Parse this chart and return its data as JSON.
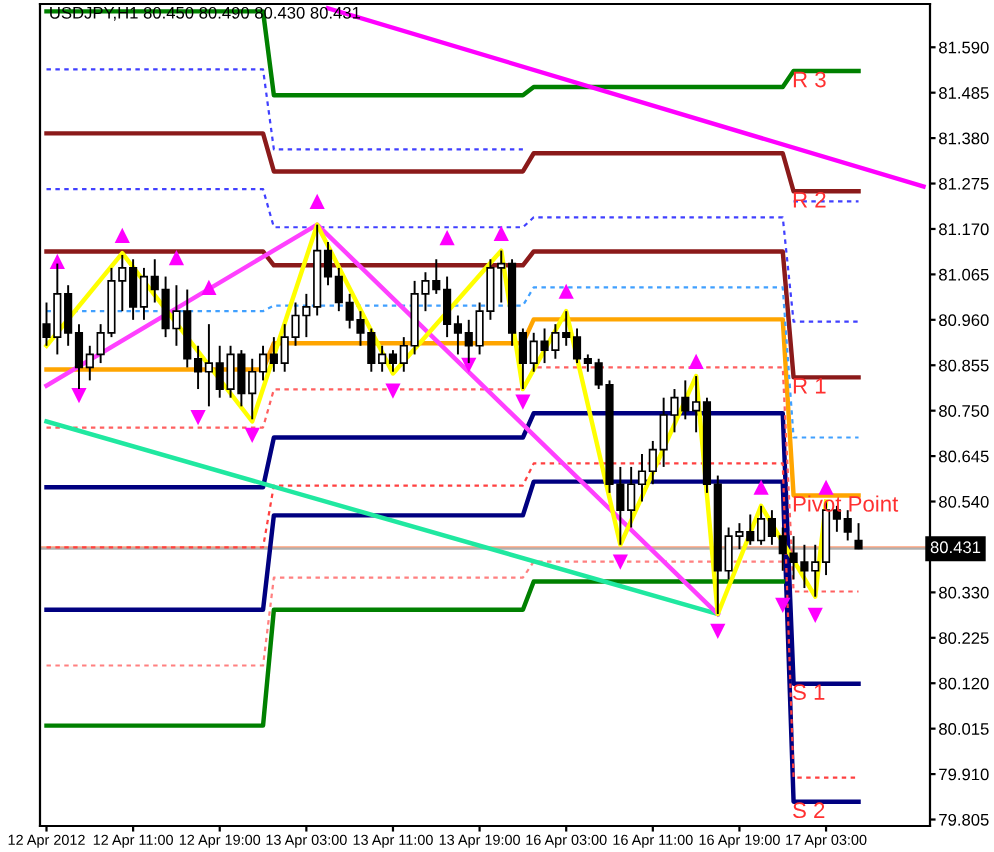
{
  "chart_data": {
    "type": "candlestick",
    "title": "USDJPY,H1 80.450 80.490 80.430 80.431",
    "categories": [
      "12 Apr 2012",
      null,
      null,
      null,
      null,
      null,
      null,
      null,
      "12 Apr 11:00",
      null,
      null,
      null,
      null,
      null,
      null,
      null,
      "12 Apr 19:00",
      null,
      null,
      null,
      null,
      null,
      null,
      null,
      "13 Apr 03:00",
      null,
      null,
      null,
      null,
      null,
      null,
      null,
      "13 Apr 11:00",
      null,
      null,
      null,
      null,
      null,
      null,
      null,
      "13 Apr 19:00",
      null,
      null,
      null,
      null,
      null,
      null,
      null,
      "16 Apr 03:00",
      null,
      null,
      null,
      null,
      null,
      null,
      null,
      "16 Apr 11:00",
      null,
      null,
      null,
      null,
      null,
      null,
      null,
      "16 Apr 19:00",
      null,
      null,
      null,
      null,
      null,
      null,
      null,
      "17 Apr 03:00",
      null,
      null,
      null,
      null,
      null,
      null,
      null,
      null,
      null
    ],
    "ohlc": [
      [
        80.95,
        81.0,
        80.9,
        80.92
      ],
      [
        80.92,
        81.09,
        80.88,
        81.02
      ],
      [
        81.02,
        81.04,
        80.9,
        80.93
      ],
      [
        80.93,
        80.95,
        80.8,
        80.85
      ],
      [
        80.85,
        80.9,
        80.82,
        80.88
      ],
      [
        80.88,
        80.95,
        80.86,
        80.93
      ],
      [
        80.93,
        81.08,
        80.92,
        81.05
      ],
      [
        81.05,
        81.11,
        80.98,
        81.08
      ],
      [
        81.08,
        81.1,
        80.96,
        80.99
      ],
      [
        80.99,
        81.08,
        80.96,
        81.06
      ],
      [
        81.06,
        81.1,
        81.0,
        81.03
      ],
      [
        81.03,
        81.06,
        80.92,
        80.94
      ],
      [
        80.94,
        81.04,
        80.9,
        80.98
      ],
      [
        80.98,
        81.03,
        80.85,
        80.87
      ],
      [
        80.87,
        80.9,
        80.8,
        80.84
      ],
      [
        80.84,
        80.95,
        80.76,
        80.86
      ],
      [
        80.86,
        80.9,
        80.78,
        80.8
      ],
      [
        80.8,
        80.9,
        80.78,
        80.88
      ],
      [
        80.88,
        80.89,
        80.76,
        80.79
      ],
      [
        80.79,
        80.87,
        80.73,
        80.84
      ],
      [
        80.84,
        80.9,
        80.82,
        80.88
      ],
      [
        80.88,
        80.92,
        80.84,
        80.86
      ],
      [
        80.86,
        80.95,
        80.84,
        80.92
      ],
      [
        80.92,
        81.0,
        80.9,
        80.97
      ],
      [
        80.97,
        81.02,
        80.92,
        80.99
      ],
      [
        80.99,
        81.18,
        80.97,
        81.12
      ],
      [
        81.12,
        81.14,
        81.04,
        81.06
      ],
      [
        81.06,
        81.08,
        80.98,
        81.0
      ],
      [
        81.0,
        81.02,
        80.94,
        80.96
      ],
      [
        80.96,
        80.98,
        80.9,
        80.93
      ],
      [
        80.93,
        80.94,
        80.84,
        80.86
      ],
      [
        80.86,
        80.9,
        80.84,
        80.88
      ],
      [
        80.88,
        80.89,
        80.84,
        80.86
      ],
      [
        80.86,
        80.92,
        80.84,
        80.9
      ],
      [
        80.9,
        81.05,
        80.88,
        81.02
      ],
      [
        81.02,
        81.07,
        80.98,
        81.05
      ],
      [
        81.05,
        81.1,
        81.02,
        81.03
      ],
      [
        81.03,
        81.06,
        80.92,
        80.95
      ],
      [
        80.95,
        80.97,
        80.88,
        80.93
      ],
      [
        80.93,
        80.96,
        80.86,
        80.9
      ],
      [
        80.9,
        81.0,
        80.88,
        80.98
      ],
      [
        80.98,
        81.1,
        80.96,
        81.08
      ],
      [
        81.08,
        81.12,
        81.0,
        81.09
      ],
      [
        81.09,
        81.1,
        80.9,
        80.93
      ],
      [
        80.93,
        80.94,
        80.8,
        80.86
      ],
      [
        80.86,
        80.93,
        80.84,
        80.91
      ],
      [
        80.91,
        80.94,
        80.86,
        80.89
      ],
      [
        80.89,
        80.95,
        80.87,
        80.93
      ],
      [
        80.93,
        80.98,
        80.9,
        80.92
      ],
      [
        80.92,
        80.94,
        80.86,
        80.87
      ],
      [
        80.87,
        80.88,
        80.84,
        80.86
      ],
      [
        80.86,
        80.87,
        80.8,
        80.81
      ],
      [
        80.81,
        80.82,
        80.56,
        80.58
      ],
      [
        80.58,
        80.62,
        80.44,
        80.52
      ],
      [
        80.52,
        80.62,
        80.48,
        80.58
      ],
      [
        80.58,
        80.65,
        80.54,
        80.61
      ],
      [
        80.61,
        80.68,
        80.58,
        80.66
      ],
      [
        80.66,
        80.78,
        80.62,
        80.74
      ],
      [
        80.74,
        80.8,
        80.7,
        80.78
      ],
      [
        80.78,
        80.82,
        80.73,
        80.75
      ],
      [
        80.75,
        80.83,
        80.7,
        80.77
      ],
      [
        80.77,
        80.78,
        80.56,
        80.58
      ],
      [
        80.58,
        80.6,
        80.28,
        80.38
      ],
      [
        80.38,
        80.48,
        80.36,
        80.46
      ],
      [
        80.46,
        80.49,
        80.43,
        80.47
      ],
      [
        80.47,
        80.51,
        80.44,
        80.45
      ],
      [
        80.45,
        80.53,
        80.44,
        80.5
      ],
      [
        80.5,
        80.52,
        80.44,
        80.46
      ],
      [
        80.46,
        80.48,
        80.38,
        80.42
      ],
      [
        80.42,
        80.46,
        80.36,
        80.4
      ],
      [
        80.4,
        80.44,
        80.34,
        80.38
      ],
      [
        80.38,
        80.44,
        80.32,
        80.4
      ],
      [
        80.4,
        80.54,
        80.37,
        80.52
      ],
      [
        80.52,
        80.53,
        80.47,
        80.5
      ],
      [
        80.5,
        80.52,
        80.45,
        80.47
      ],
      [
        80.45,
        80.49,
        80.43,
        80.431
      ],
      null,
      null,
      null,
      null,
      null,
      null
    ],
    "series": [
      {
        "type": "line",
        "color": "#008000",
        "line_style": "solid",
        "values": [
          81.673,
          null,
          null,
          null,
          null,
          null,
          null,
          null,
          null,
          null,
          null,
          null,
          null,
          null,
          null,
          null,
          null,
          null,
          null,
          null,
          81.673,
          81.479,
          null,
          null,
          null,
          null,
          null,
          null,
          null,
          null,
          null,
          null,
          null,
          null,
          null,
          null,
          null,
          null,
          null,
          null,
          null,
          null,
          null,
          null,
          81.479,
          81.498,
          null,
          null,
          null,
          null,
          null,
          null,
          null,
          null,
          null,
          null,
          null,
          null,
          null,
          null,
          null,
          null,
          null,
          null,
          null,
          null,
          null,
          null,
          81.498,
          81.535,
          null,
          null,
          null,
          null,
          null,
          81.535,
          null,
          null,
          null,
          null,
          null,
          null
        ]
      },
      {
        "type": "line",
        "color": "#8b1a1a",
        "line_style": "solid",
        "values": [
          81.391,
          null,
          null,
          null,
          null,
          null,
          null,
          null,
          null,
          null,
          null,
          null,
          null,
          null,
          null,
          null,
          null,
          null,
          null,
          null,
          81.391,
          81.303,
          null,
          null,
          null,
          null,
          null,
          null,
          null,
          null,
          null,
          null,
          null,
          null,
          null,
          null,
          null,
          null,
          null,
          null,
          null,
          null,
          null,
          null,
          81.303,
          81.345,
          null,
          null,
          null,
          null,
          null,
          null,
          null,
          null,
          null,
          null,
          null,
          null,
          null,
          null,
          null,
          null,
          null,
          null,
          null,
          null,
          null,
          null,
          81.345,
          81.257,
          null,
          null,
          null,
          null,
          null,
          81.257,
          null,
          null,
          null,
          null,
          null,
          null
        ]
      },
      {
        "type": "line",
        "color": "#8b1a1a",
        "line_style": "solid",
        "values": [
          81.118,
          null,
          null,
          null,
          null,
          null,
          null,
          null,
          null,
          null,
          null,
          null,
          null,
          null,
          null,
          null,
          null,
          null,
          null,
          null,
          81.118,
          81.086,
          null,
          null,
          null,
          null,
          null,
          null,
          null,
          null,
          null,
          null,
          null,
          null,
          null,
          null,
          null,
          null,
          null,
          null,
          null,
          null,
          null,
          null,
          81.086,
          81.118,
          null,
          null,
          null,
          null,
          null,
          null,
          null,
          null,
          null,
          null,
          null,
          null,
          null,
          null,
          null,
          null,
          null,
          null,
          null,
          null,
          null,
          null,
          81.118,
          80.827,
          null,
          null,
          null,
          null,
          null,
          80.827,
          null,
          null,
          null,
          null,
          null,
          null
        ]
      },
      {
        "type": "line",
        "color": "#ffa500",
        "line_style": "solid",
        "values": [
          80.845,
          null,
          null,
          null,
          null,
          null,
          null,
          null,
          null,
          null,
          null,
          null,
          null,
          null,
          null,
          null,
          null,
          null,
          null,
          null,
          80.845,
          80.906,
          null,
          null,
          null,
          null,
          null,
          null,
          null,
          null,
          null,
          null,
          null,
          null,
          null,
          null,
          null,
          null,
          null,
          null,
          null,
          null,
          null,
          null,
          80.906,
          80.961,
          null,
          null,
          null,
          null,
          null,
          null,
          null,
          null,
          null,
          null,
          null,
          null,
          null,
          null,
          null,
          null,
          null,
          null,
          null,
          null,
          null,
          null,
          80.961,
          80.554,
          null,
          null,
          null,
          null,
          null,
          80.554,
          null,
          null,
          null,
          null,
          null,
          null
        ]
      },
      {
        "type": "line",
        "color": "#000080",
        "line_style": "solid",
        "values": [
          80.573,
          null,
          null,
          null,
          null,
          null,
          null,
          null,
          null,
          null,
          null,
          null,
          null,
          null,
          null,
          null,
          null,
          null,
          null,
          null,
          80.573,
          80.688,
          null,
          null,
          null,
          null,
          null,
          null,
          null,
          null,
          null,
          null,
          null,
          null,
          null,
          null,
          null,
          null,
          null,
          null,
          null,
          null,
          null,
          null,
          80.688,
          80.744,
          null,
          null,
          null,
          null,
          null,
          null,
          null,
          null,
          null,
          null,
          null,
          null,
          null,
          null,
          null,
          null,
          null,
          null,
          null,
          null,
          null,
          null,
          80.744,
          80.119,
          null,
          null,
          null,
          null,
          null,
          80.119,
          null,
          null,
          null,
          null,
          null,
          null
        ]
      },
      {
        "type": "line",
        "color": "#000080",
        "line_style": "solid",
        "values": [
          80.29,
          null,
          null,
          null,
          null,
          null,
          null,
          null,
          null,
          null,
          null,
          null,
          null,
          null,
          null,
          null,
          null,
          null,
          null,
          null,
          80.29,
          80.508,
          null,
          null,
          null,
          null,
          null,
          null,
          null,
          null,
          null,
          null,
          null,
          null,
          null,
          null,
          null,
          null,
          null,
          null,
          null,
          null,
          null,
          null,
          80.508,
          80.586,
          null,
          null,
          null,
          null,
          null,
          null,
          null,
          null,
          null,
          null,
          null,
          null,
          null,
          null,
          null,
          null,
          null,
          null,
          null,
          null,
          null,
          null,
          80.586,
          79.846,
          null,
          null,
          null,
          null,
          null,
          79.846,
          null,
          null,
          null,
          null,
          null,
          null
        ]
      },
      {
        "type": "line",
        "color": "#008000",
        "line_style": "solid",
        "values": [
          80.022,
          null,
          null,
          null,
          null,
          null,
          null,
          null,
          null,
          null,
          null,
          null,
          null,
          null,
          null,
          null,
          null,
          null,
          null,
          null,
          80.022,
          80.29,
          null,
          null,
          null,
          null,
          null,
          null,
          null,
          null,
          null,
          null,
          null,
          null,
          null,
          null,
          null,
          null,
          null,
          null,
          null,
          null,
          null,
          null,
          80.29,
          80.355,
          null,
          null,
          null,
          null,
          null,
          null,
          null,
          null,
          null,
          null,
          null,
          null,
          null,
          null,
          null,
          null,
          null,
          null,
          null,
          null,
          null,
          null,
          80.355,
          null,
          null,
          null,
          null,
          null,
          null,
          null,
          null,
          null,
          null,
          null,
          null,
          null
        ]
      },
      {
        "type": "line",
        "color": "#4040ff",
        "line_style": "dashed",
        "values": [
          81.539,
          null,
          null,
          null,
          null,
          null,
          null,
          null,
          null,
          null,
          null,
          null,
          null,
          null,
          null,
          null,
          null,
          null,
          null,
          null,
          81.539,
          81.354,
          null,
          null,
          null,
          null,
          null,
          null,
          null,
          null,
          null,
          null,
          null,
          null,
          null,
          null,
          null,
          null,
          null,
          null,
          null,
          null,
          null,
          null,
          81.354,
          null,
          null,
          null,
          null,
          null,
          null,
          null,
          null,
          null,
          null,
          null,
          null,
          null,
          null,
          null,
          null,
          null,
          null,
          null,
          null,
          null,
          null,
          null,
          null,
          null,
          null,
          null,
          null,
          null,
          null,
          null,
          null,
          null,
          null,
          null,
          null,
          null
        ]
      },
      {
        "type": "line",
        "color": "#4040ff",
        "line_style": "dashed",
        "values": [
          null,
          null,
          null,
          null,
          null,
          null,
          null,
          null,
          null,
          null,
          null,
          null,
          null,
          null,
          null,
          null,
          null,
          null,
          null,
          null,
          null,
          null,
          null,
          null,
          null,
          null,
          null,
          null,
          null,
          null,
          null,
          null,
          null,
          null,
          null,
          null,
          null,
          null,
          null,
          null,
          null,
          null,
          null,
          null,
          null,
          null,
          null,
          null,
          null,
          null,
          null,
          null,
          null,
          null,
          null,
          null,
          null,
          null,
          null,
          null,
          null,
          null,
          null,
          null,
          null,
          null,
          null,
          null,
          null,
          81.234,
          null,
          null,
          null,
          null,
          null,
          81.234,
          null,
          null,
          null,
          null,
          null,
          null
        ]
      },
      {
        "type": "line",
        "color": "#4040ff",
        "line_style": "dashed",
        "values": [
          81.262,
          null,
          null,
          null,
          null,
          null,
          null,
          null,
          null,
          null,
          null,
          null,
          null,
          null,
          null,
          null,
          null,
          null,
          null,
          null,
          81.262,
          81.174,
          null,
          null,
          null,
          null,
          null,
          null,
          null,
          null,
          null,
          null,
          null,
          null,
          null,
          null,
          null,
          null,
          null,
          null,
          null,
          null,
          null,
          null,
          81.174,
          81.197,
          null,
          null,
          null,
          null,
          null,
          null,
          null,
          null,
          null,
          null,
          null,
          null,
          null,
          null,
          null,
          null,
          null,
          null,
          null,
          null,
          null,
          null,
          81.197,
          80.956,
          null,
          null,
          null,
          null,
          null,
          80.956,
          null,
          null,
          null,
          null,
          null,
          null
        ]
      },
      {
        "type": "line",
        "color": "#40a0ff",
        "line_style": "dashed",
        "values": [
          80.98,
          null,
          null,
          null,
          null,
          null,
          null,
          null,
          null,
          null,
          null,
          null,
          null,
          null,
          null,
          null,
          null,
          null,
          null,
          null,
          80.98,
          80.993,
          null,
          null,
          null,
          null,
          null,
          null,
          null,
          null,
          null,
          null,
          null,
          null,
          null,
          null,
          null,
          null,
          null,
          null,
          null,
          null,
          null,
          null,
          80.993,
          81.035,
          null,
          null,
          null,
          null,
          null,
          null,
          null,
          null,
          null,
          null,
          null,
          null,
          null,
          null,
          null,
          null,
          null,
          null,
          null,
          null,
          null,
          null,
          81.035,
          80.688,
          null,
          null,
          null,
          null,
          null,
          80.688,
          null,
          null,
          null,
          null,
          null,
          null
        ]
      },
      {
        "type": "line",
        "color": "#ff6060",
        "line_style": "dashed",
        "values": [
          80.711,
          null,
          null,
          null,
          null,
          null,
          null,
          null,
          null,
          null,
          null,
          null,
          null,
          null,
          null,
          null,
          null,
          null,
          null,
          null,
          80.711,
          80.799,
          null,
          null,
          null,
          null,
          null,
          null,
          null,
          null,
          null,
          null,
          null,
          null,
          null,
          null,
          null,
          null,
          null,
          null,
          null,
          null,
          null,
          null,
          80.799,
          80.85,
          null,
          null,
          null,
          null,
          null,
          null,
          null,
          null,
          null,
          null,
          null,
          null,
          null,
          null,
          null,
          null,
          null,
          null,
          null,
          null,
          null,
          null,
          80.85,
          80.332,
          null,
          null,
          null,
          null,
          null,
          80.332,
          null,
          null,
          null,
          null,
          null,
          null
        ]
      },
      {
        "type": "line",
        "color": "#ff4040",
        "line_style": "dashed",
        "values": [
          80.434,
          null,
          null,
          null,
          null,
          null,
          null,
          null,
          null,
          null,
          null,
          null,
          null,
          null,
          null,
          null,
          null,
          null,
          null,
          null,
          80.434,
          80.577,
          null,
          null,
          null,
          null,
          null,
          null,
          null,
          null,
          null,
          null,
          null,
          null,
          null,
          null,
          null,
          null,
          null,
          null,
          null,
          null,
          null,
          null,
          80.577,
          80.628,
          null,
          null,
          null,
          null,
          null,
          null,
          null,
          null,
          null,
          null,
          null,
          null,
          null,
          null,
          null,
          null,
          null,
          null,
          null,
          null,
          null,
          null,
          80.628,
          79.902,
          null,
          null,
          null,
          null,
          null,
          79.902,
          null,
          null,
          null,
          null,
          null,
          null
        ]
      },
      {
        "type": "line",
        "color": "#ff8080",
        "line_style": "dashed",
        "values": [
          80.161,
          null,
          null,
          null,
          null,
          null,
          null,
          null,
          null,
          null,
          null,
          null,
          null,
          null,
          null,
          null,
          null,
          null,
          null,
          null,
          80.161,
          80.364,
          null,
          null,
          null,
          null,
          null,
          null,
          null,
          null,
          null,
          null,
          null,
          null,
          null,
          null,
          null,
          null,
          null,
          null,
          null,
          null,
          null,
          null,
          80.364,
          80.401,
          null,
          null,
          null,
          null,
          null,
          null,
          null,
          null,
          null,
          null,
          null,
          null,
          null,
          null,
          null,
          null,
          null,
          null,
          null,
          null,
          null,
          null,
          80.401,
          null,
          null,
          null,
          null,
          null,
          null,
          null,
          null,
          null,
          null,
          null,
          null,
          null
        ]
      },
      {
        "type": "line",
        "color": "#ff00ff",
        "line_style": "solid",
        "values": [
          null,
          null,
          null,
          null,
          null,
          null,
          null,
          null,
          null,
          null,
          null,
          null,
          null,
          null,
          null,
          null,
          null,
          null,
          null,
          null,
          null,
          null,
          null,
          null,
          null,
          null,
          81.68,
          null,
          null,
          null,
          null,
          null,
          null,
          null,
          null,
          null,
          null,
          null,
          null,
          null,
          null,
          null,
          null,
          null,
          null,
          null,
          null,
          null,
          null,
          null,
          null,
          null,
          null,
          null,
          null,
          null,
          null,
          null,
          null,
          null,
          null,
          null,
          null,
          null,
          null,
          null,
          null,
          null,
          null,
          null,
          null,
          null,
          null,
          null,
          null,
          null,
          null,
          null,
          null,
          null,
          null,
          81.268
        ]
      },
      {
        "type": "line",
        "color": "#20e8a0",
        "line_style": "solid",
        "values": [
          80.725,
          null,
          null,
          null,
          null,
          null,
          null,
          null,
          null,
          null,
          null,
          null,
          null,
          null,
          null,
          null,
          null,
          null,
          null,
          null,
          null,
          null,
          null,
          null,
          null,
          null,
          null,
          null,
          null,
          null,
          null,
          null,
          null,
          null,
          null,
          null,
          null,
          null,
          null,
          null,
          null,
          null,
          null,
          null,
          null,
          null,
          null,
          null,
          null,
          null,
          null,
          null,
          null,
          null,
          null,
          null,
          null,
          null,
          null,
          null,
          null,
          null,
          80.28,
          null,
          null,
          null,
          null,
          null,
          null,
          null,
          null,
          null,
          null,
          null,
          null,
          null,
          null,
          null,
          null,
          null,
          null,
          null
        ]
      },
      {
        "type": "line",
        "color": "#ff40ff",
        "line_style": "solid",
        "values": [
          80.808,
          null,
          null,
          null,
          null,
          null,
          null,
          null,
          null,
          null,
          null,
          null,
          null,
          null,
          null,
          null,
          null,
          null,
          null,
          null,
          null,
          null,
          null,
          null,
          null,
          81.18,
          null,
          null,
          null,
          null,
          null,
          null,
          null,
          null,
          null,
          null,
          null,
          null,
          null,
          null,
          null,
          null,
          null,
          null,
          null,
          null,
          null,
          null,
          null,
          null,
          null,
          null,
          null,
          null,
          null,
          null,
          null,
          null,
          null,
          null,
          null,
          null,
          80.28,
          null,
          null,
          null,
          null,
          null,
          null,
          null,
          null,
          null,
          null,
          null,
          null,
          null,
          null,
          null,
          null,
          null,
          null,
          null
        ]
      },
      {
        "type": "line",
        "color": "#ffff00",
        "line_style": "solid",
        "values": [
          80.9,
          null,
          null,
          null,
          null,
          null,
          null,
          81.114,
          null,
          null,
          null,
          null,
          null,
          null,
          null,
          null,
          null,
          null,
          null,
          80.725,
          null,
          null,
          null,
          null,
          null,
          81.18,
          null,
          null,
          null,
          null,
          null,
          null,
          80.836,
          null,
          null,
          null,
          null,
          null,
          null,
          null,
          null,
          null,
          81.12,
          null,
          80.8,
          null,
          null,
          null,
          80.98,
          null,
          null,
          null,
          null,
          80.44,
          null,
          null,
          null,
          null,
          null,
          null,
          80.83,
          null,
          80.28,
          null,
          null,
          null,
          80.53,
          null,
          null,
          null,
          null,
          80.32,
          80.54,
          null,
          null,
          null,
          null,
          null,
          null,
          null,
          null,
          null
        ]
      },
      {
        "type": "scatter",
        "color": "#ff00ff",
        "marker": "triangle",
        "values": [
          null,
          81.095,
          null,
          null,
          null,
          null,
          null,
          81.155,
          null,
          null,
          null,
          null,
          81.104,
          null,
          null,
          81.035,
          null,
          null,
          null,
          null,
          null,
          null,
          null,
          null,
          null,
          81.234,
          null,
          null,
          null,
          null,
          null,
          null,
          null,
          null,
          null,
          null,
          null,
          81.15,
          null,
          null,
          null,
          null,
          81.16,
          null,
          null,
          null,
          null,
          null,
          81.026,
          null,
          null,
          null,
          null,
          null,
          null,
          null,
          null,
          null,
          null,
          null,
          80.864,
          null,
          null,
          null,
          null,
          null,
          80.573,
          null,
          null,
          null,
          null,
          null,
          80.573,
          null,
          null,
          null,
          null,
          null,
          null,
          null,
          null,
          null
        ]
      },
      {
        "type": "scatter",
        "color": "#ff00ff",
        "marker": "triangle_down",
        "values": [
          null,
          null,
          null,
          80.785,
          null,
          null,
          null,
          null,
          null,
          null,
          null,
          null,
          null,
          null,
          80.734,
          null,
          null,
          null,
          null,
          80.693,
          null,
          null,
          null,
          null,
          null,
          null,
          null,
          null,
          null,
          null,
          null,
          null,
          80.795,
          null,
          null,
          null,
          null,
          null,
          null,
          80.855,
          null,
          null,
          null,
          null,
          80.77,
          null,
          null,
          null,
          null,
          null,
          null,
          null,
          null,
          80.4,
          null,
          null,
          null,
          null,
          null,
          null,
          null,
          null,
          80.24,
          null,
          null,
          null,
          null,
          null,
          80.3,
          null,
          null,
          80.277,
          null,
          null,
          null,
          null,
          null,
          null,
          null,
          null,
          null,
          null
        ]
      }
    ],
    "annotations": [
      {
        "text": "R 3",
        "y": 81.535
      },
      {
        "text": "R 2",
        "y": 81.257
      },
      {
        "text": "R 1",
        "y": 80.827
      },
      {
        "text": "Pivot Point",
        "y": 80.554
      },
      {
        "text": "S 1",
        "y": 80.119
      },
      {
        "text": "S 2",
        "y": 79.846
      }
    ],
    "ref_lines": [
      {
        "axis": "y",
        "value": 80.434,
        "color": "#ffa07a",
        "line_style": "solid"
      },
      {
        "axis": "y",
        "value": 80.431,
        "color": "#b0b0b0",
        "line_style": "solid",
        "label": "80.431"
      }
    ],
    "ylim": [
      79.79,
      81.69
    ],
    "yticks": [
      {
        "value": 81.59,
        "label": "81.590"
      },
      {
        "value": 81.485,
        "label": "81.485"
      },
      {
        "value": 81.38,
        "label": "81.380"
      },
      {
        "value": 81.275,
        "label": "81.275"
      },
      {
        "value": 81.17,
        "label": "81.170"
      },
      {
        "value": 81.065,
        "label": "81.065"
      },
      {
        "value": 80.96,
        "label": "80.960"
      },
      {
        "value": 80.855,
        "label": "80.855"
      },
      {
        "value": 80.75,
        "label": "80.750"
      },
      {
        "value": 80.645,
        "label": "80.645"
      },
      {
        "value": 80.54,
        "label": "80.540"
      },
      {
        "value": 80.33,
        "label": "80.330"
      },
      {
        "value": 80.225,
        "label": "80.225"
      },
      {
        "value": 80.12,
        "label": "80.120"
      },
      {
        "value": 80.015,
        "label": "80.015"
      },
      {
        "value": 79.91,
        "label": "79.910"
      },
      {
        "value": 79.805,
        "label": "79.805"
      }
    ],
    "grid": false,
    "legend": false
  }
}
